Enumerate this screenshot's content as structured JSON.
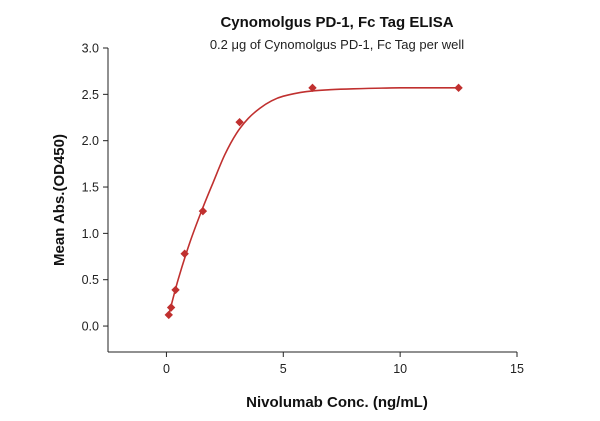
{
  "chart_data": {
    "type": "scatter",
    "title": "Cynomolgus PD-1, Fc Tag ELISA",
    "subtitle": "0.2 μg of Cynomolgus PD-1, Fc Tag per well",
    "xlabel": "Nivolumab Conc. (ng/mL)",
    "ylabel": "Mean Abs.(OD450)",
    "xlim": [
      -2.5,
      15
    ],
    "ylim": [
      -0.28,
      3.0
    ],
    "x_ticks": [
      0,
      5,
      10,
      15
    ],
    "y_ticks": [
      0.0,
      0.5,
      1.0,
      1.5,
      2.0,
      2.5,
      3.0
    ],
    "x_tick_labels": [
      "0",
      "5",
      "10",
      "15"
    ],
    "y_tick_labels": [
      "0.0",
      "0.5",
      "1.0",
      "1.5",
      "2.0",
      "2.5",
      "3.0"
    ],
    "grid": false,
    "legend": "none",
    "series": [
      {
        "marker": "diamond",
        "color": "#c0302f",
        "points": [
          {
            "x": 0.1,
            "y": 0.12
          },
          {
            "x": 0.2,
            "y": 0.2
          },
          {
            "x": 0.39,
            "y": 0.39
          },
          {
            "x": 0.78,
            "y": 0.78
          },
          {
            "x": 1.56,
            "y": 1.24
          },
          {
            "x": 3.13,
            "y": 2.2
          },
          {
            "x": 6.25,
            "y": 2.57
          },
          {
            "x": 12.5,
            "y": 2.57
          }
        ],
        "fit_curve": {
          "color": "#c0302f",
          "points": [
            {
              "x": 0.1,
              "y": 0.12
            },
            {
              "x": 0.5,
              "y": 0.5
            },
            {
              "x": 1.0,
              "y": 0.9
            },
            {
              "x": 1.5,
              "y": 1.24
            },
            {
              "x": 2.0,
              "y": 1.55
            },
            {
              "x": 2.5,
              "y": 1.85
            },
            {
              "x": 3.0,
              "y": 2.08
            },
            {
              "x": 3.5,
              "y": 2.24
            },
            {
              "x": 4.0,
              "y": 2.35
            },
            {
              "x": 4.5,
              "y": 2.43
            },
            {
              "x": 5.0,
              "y": 2.48
            },
            {
              "x": 6.0,
              "y": 2.53
            },
            {
              "x": 7.0,
              "y": 2.55
            },
            {
              "x": 8.0,
              "y": 2.56
            },
            {
              "x": 10.0,
              "y": 2.57
            },
            {
              "x": 12.5,
              "y": 2.57
            }
          ]
        }
      }
    ]
  }
}
